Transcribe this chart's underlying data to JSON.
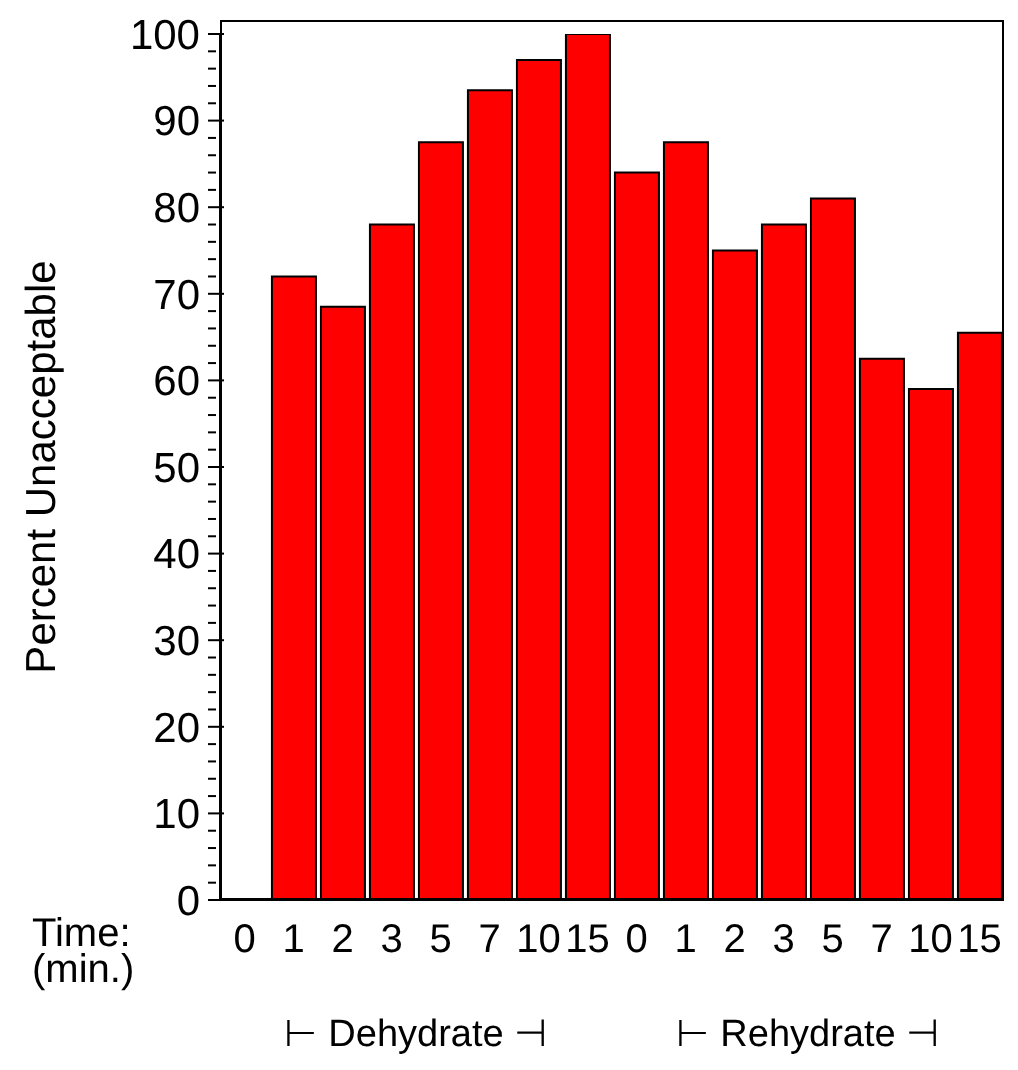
{
  "chart_data": {
    "type": "bar",
    "ylabel": "Percent Unacceptable",
    "xlabel": "Time:\n(min.)",
    "categories": [
      "0",
      "1",
      "2",
      "3",
      "5",
      "7",
      "10",
      "15",
      "0",
      "1",
      "2",
      "3",
      "5",
      "7",
      "10",
      "15"
    ],
    "values": [
      0,
      72,
      68.5,
      78,
      87.5,
      93.5,
      97,
      100,
      84,
      87.5,
      75,
      78,
      81,
      62.5,
      59,
      65.5
    ],
    "color": "#ff0000",
    "ylim": [
      0,
      100
    ],
    "yticks": [
      0,
      {
        "value": 2,
        "label": null
      },
      {
        "value": 4,
        "label": null
      },
      {
        "value": 6,
        "label": null
      },
      {
        "value": 8,
        "label": null
      },
      10,
      {
        "value": 12,
        "label": null
      },
      {
        "value": 14,
        "label": null
      },
      {
        "value": 16,
        "label": null
      },
      {
        "value": 18,
        "label": null
      },
      20,
      {
        "value": 22,
        "label": null
      },
      {
        "value": 24,
        "label": null
      },
      {
        "value": 26,
        "label": null
      },
      {
        "value": 28,
        "label": null
      },
      30,
      {
        "value": 32,
        "label": null
      },
      {
        "value": 34,
        "label": null
      },
      {
        "value": 36,
        "label": null
      },
      {
        "value": 38,
        "label": null
      },
      40,
      {
        "value": 42,
        "label": null
      },
      {
        "value": 44,
        "label": null
      },
      {
        "value": 46,
        "label": null
      },
      {
        "value": 48,
        "label": null
      },
      50,
      {
        "value": 52,
        "label": null
      },
      {
        "value": 54,
        "label": null
      },
      {
        "value": 56,
        "label": null
      },
      {
        "value": 58,
        "label": null
      },
      60,
      {
        "value": 62,
        "label": null
      },
      {
        "value": 64,
        "label": null
      },
      {
        "value": 66,
        "label": null
      },
      {
        "value": 68,
        "label": null
      },
      70,
      {
        "value": 72,
        "label": null
      },
      {
        "value": 74,
        "label": null
      },
      {
        "value": 76,
        "label": null
      },
      {
        "value": 78,
        "label": null
      },
      80,
      {
        "value": 82,
        "label": null
      },
      {
        "value": 84,
        "label": null
      },
      {
        "value": 86,
        "label": null
      },
      {
        "value": 88,
        "label": null
      },
      90,
      {
        "value": 92,
        "label": null
      },
      {
        "value": 94,
        "label": null
      },
      {
        "value": 96,
        "label": null
      },
      {
        "value": 98,
        "label": null
      },
      100
    ],
    "grid": false,
    "annotations": [
      "⊢ Dehydrate ⊣",
      "⊢ Rehydrate ⊣"
    ]
  }
}
